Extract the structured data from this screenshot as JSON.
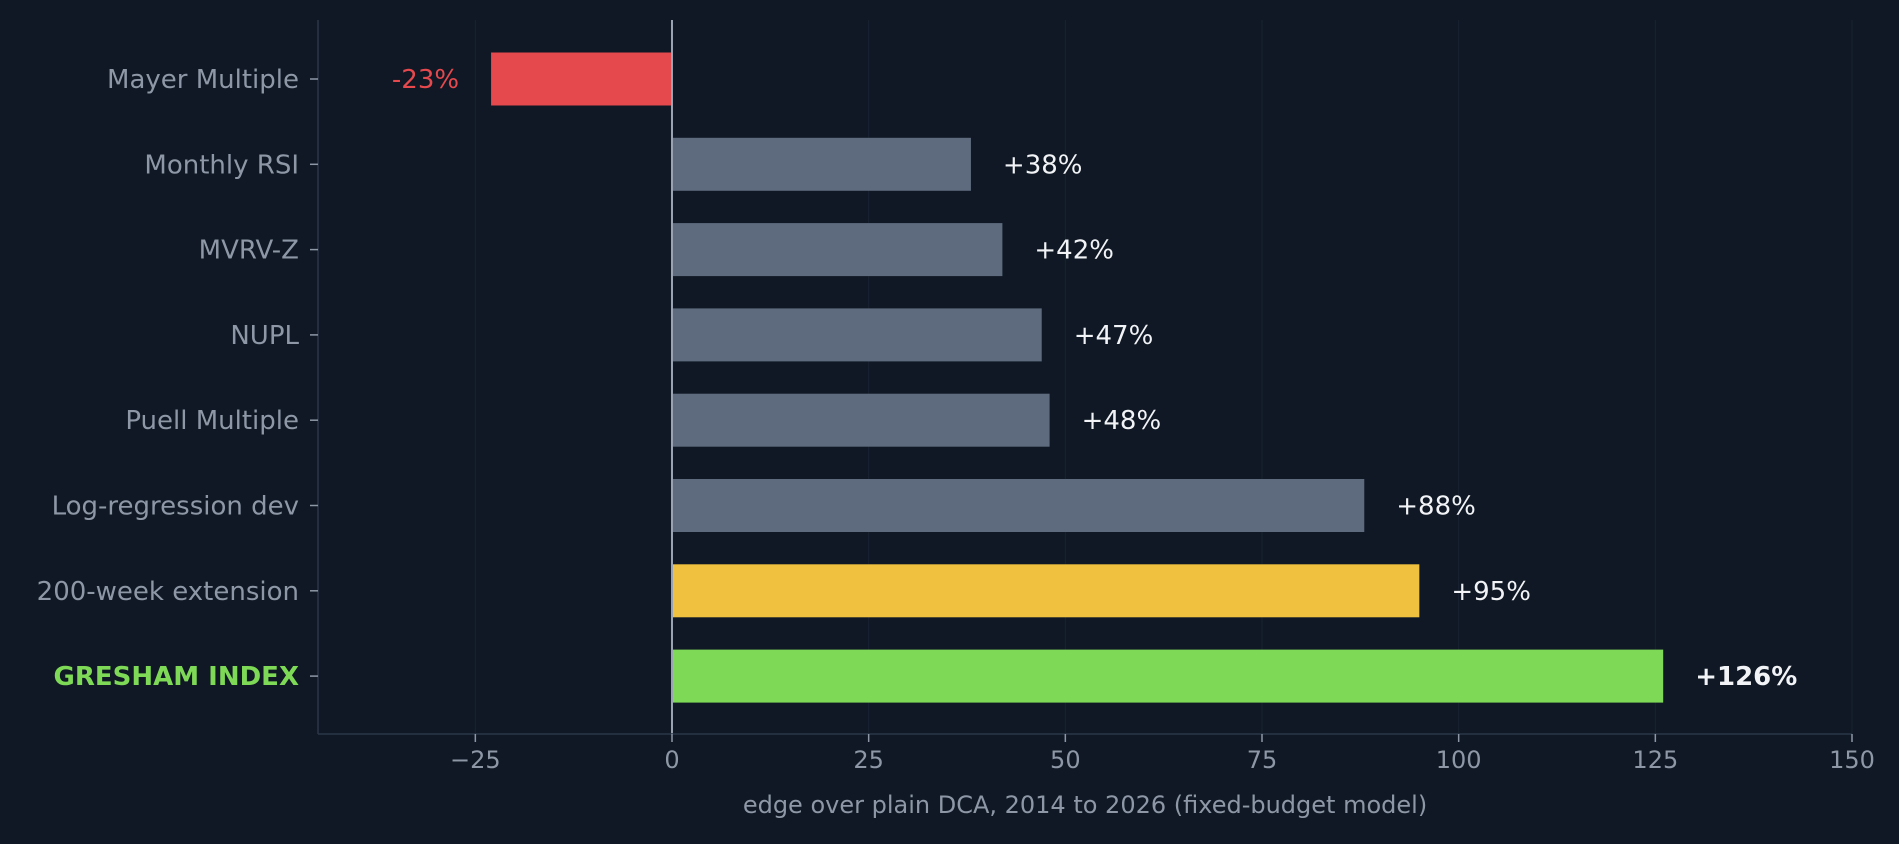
{
  "chart_data": {
    "type": "bar",
    "orientation": "horizontal",
    "categories": [
      "Mayer Multiple",
      "Monthly RSI",
      "MVRV-Z",
      "NUPL",
      "Puell Multiple",
      "Log-regression dev",
      "200-week extension",
      "GRESHAM INDEX"
    ],
    "values": [
      -23,
      38,
      42,
      47,
      48,
      88,
      95,
      126
    ],
    "value_labels": [
      "-23%",
      "+38%",
      "+42%",
      "+47%",
      "+48%",
      "+88%",
      "+95%",
      "+126%"
    ],
    "bar_colors": [
      "#e5484d",
      "#5e6b7e",
      "#5e6b7e",
      "#5e6b7e",
      "#5e6b7e",
      "#5e6b7e",
      "#f0c03f",
      "#7ed957"
    ],
    "label_colors": [
      "#e5484d",
      "#f1f3f6",
      "#f1f3f6",
      "#f1f3f6",
      "#f1f3f6",
      "#f1f3f6",
      "#f1f3f6",
      "#f1f3f6"
    ],
    "highlight_category": "GRESHAM INDEX",
    "highlight_color": "#7ed957",
    "xlabel": "edge over plain DCA, 2014 to 2026 (fixed-budget model)",
    "ylabel": "",
    "title": "",
    "xlim": [
      -45,
      150
    ],
    "xticks": [
      -25,
      0,
      25,
      50,
      75,
      100,
      125,
      150
    ],
    "xtick_labels": [
      "−25",
      "0",
      "25",
      "50",
      "75",
      "100",
      "125",
      "150"
    ],
    "grid": "vertical",
    "zero_line": true
  },
  "colors": {
    "background": "#0f1824",
    "axis": "#2a3546",
    "grid": "#182230",
    "tick_text": "#8d97a6",
    "zero_line": "#9aa3b1"
  }
}
